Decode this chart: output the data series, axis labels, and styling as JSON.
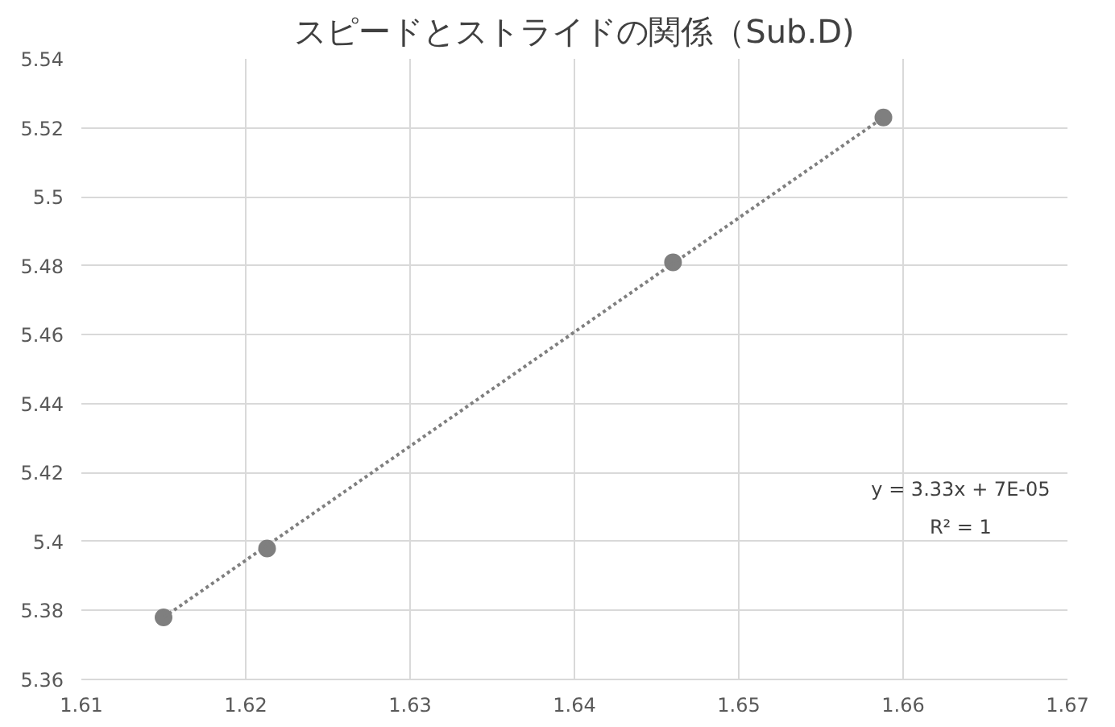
{
  "chart_data": {
    "type": "scatter",
    "title": "スピードとストライドの関係（Sub.D)",
    "x": [
      1.615,
      1.6213,
      1.646,
      1.6588
    ],
    "series": [
      {
        "color": "#7f7f7f",
        "values": [
          5.378,
          5.398,
          5.481,
          5.523
        ],
        "marker": "circle"
      },
      {
        "type": "line",
        "color": "#7f7f7f",
        "x": [
          1.615,
          1.6588
        ],
        "values": [
          5.378,
          5.523
        ],
        "line_style": "dotted",
        "marker": "none"
      }
    ],
    "xlim": [
      1.61,
      1.67
    ],
    "xticks": [
      1.61,
      1.62,
      1.63,
      1.64,
      1.65,
      1.66,
      1.67
    ],
    "ylim": [
      5.36,
      5.54
    ],
    "yticks": [
      5.36,
      5.38,
      5.4,
      5.42,
      5.44,
      5.46,
      5.48,
      5.5,
      5.52,
      5.54
    ],
    "grid": true,
    "annotations": [
      "y = 3.33x + 7E-05",
      "R² = 1"
    ]
  }
}
